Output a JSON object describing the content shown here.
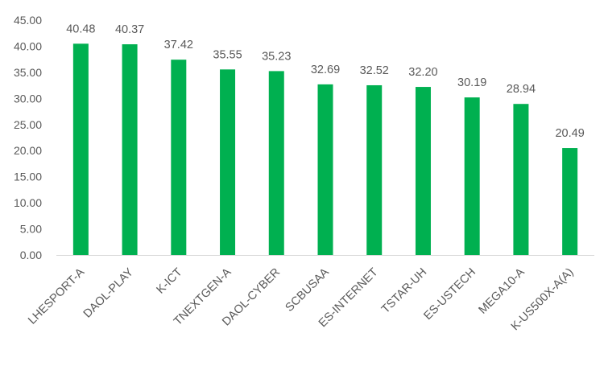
{
  "chart_data": {
    "type": "bar",
    "title": "",
    "xlabel": "",
    "ylabel": "",
    "categories": [
      "LHESPORT-A",
      "DAOL-PLAY",
      "K-ICT",
      "TNEXTGEN-A",
      "DAOL-CYBER",
      "SCBUSAA",
      "ES-INTERNET",
      "TSTAR-UH",
      "ES-USTECH",
      "MEGA10-A",
      "K-US500X-A(A)"
    ],
    "values": [
      40.48,
      40.37,
      37.42,
      35.55,
      35.23,
      32.69,
      32.52,
      32.2,
      30.19,
      28.94,
      20.49
    ],
    "value_labels": [
      "40.48",
      "40.37",
      "37.42",
      "35.55",
      "35.23",
      "32.69",
      "32.52",
      "32.20",
      "30.19",
      "28.94",
      "20.49"
    ],
    "ylim": [
      0,
      45
    ],
    "y_ticks": [
      "0.00",
      "5.00",
      "10.00",
      "15.00",
      "20.00",
      "25.00",
      "30.00",
      "35.00",
      "40.00",
      "45.00"
    ],
    "grid": false,
    "legend": "none",
    "bar_color": "#00B050",
    "axis_color": "#D9D9D9",
    "text_color": "#595959"
  }
}
